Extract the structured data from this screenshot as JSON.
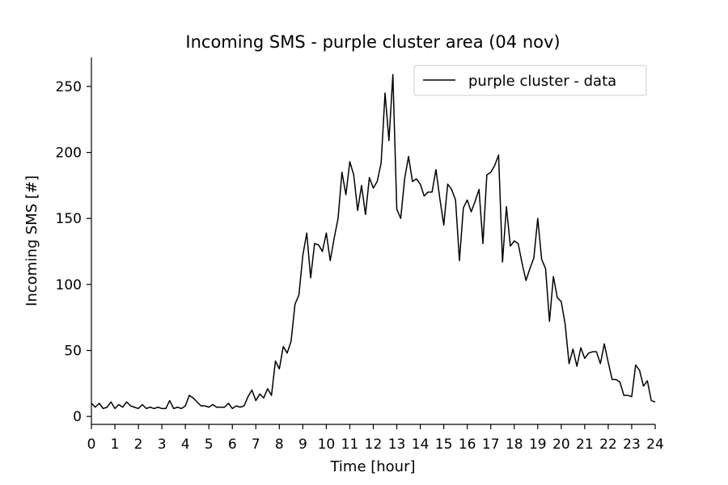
{
  "chart_data": {
    "type": "line",
    "title": "Incoming SMS - purple cluster area (04 nov)",
    "xlabel": "Time [hour]",
    "ylabel": "Incoming SMS [#]",
    "xlim": [
      0,
      24
    ],
    "ylim": [
      -6,
      272
    ],
    "xticks": [
      0,
      1,
      2,
      3,
      4,
      5,
      6,
      7,
      8,
      9,
      10,
      11,
      12,
      13,
      14,
      15,
      16,
      17,
      18,
      19,
      20,
      21,
      22,
      23,
      24
    ],
    "yticks": [
      0,
      50,
      100,
      150,
      200,
      250
    ],
    "grid": false,
    "legend_position": "top-right",
    "series": [
      {
        "name": "purple cluster - data",
        "color": "#000000",
        "x": [
          0,
          0.1667,
          0.3333,
          0.5,
          0.6667,
          0.8333,
          1,
          1.1667,
          1.3333,
          1.5,
          1.6667,
          1.8333,
          2,
          2.1667,
          2.3333,
          2.5,
          2.6667,
          2.8333,
          3,
          3.1667,
          3.3333,
          3.5,
          3.6667,
          3.8333,
          4,
          4.1667,
          4.3333,
          4.5,
          4.6667,
          4.8333,
          5,
          5.1667,
          5.3333,
          5.5,
          5.6667,
          5.8333,
          6,
          6.1667,
          6.3333,
          6.5,
          6.6667,
          6.8333,
          7,
          7.1667,
          7.3333,
          7.5,
          7.6667,
          7.8333,
          8,
          8.1667,
          8.3333,
          8.5,
          8.6667,
          8.8333,
          9,
          9.1667,
          9.3333,
          9.5,
          9.6667,
          9.8333,
          10,
          10.1667,
          10.3333,
          10.5,
          10.6667,
          10.8333,
          11,
          11.1667,
          11.3333,
          11.5,
          11.6667,
          11.8333,
          12,
          12.1667,
          12.3333,
          12.5,
          12.6667,
          12.8333,
          13,
          13.1667,
          13.3333,
          13.5,
          13.6667,
          13.8333,
          14,
          14.1667,
          14.3333,
          14.5,
          14.6667,
          14.8333,
          15,
          15.1667,
          15.3333,
          15.5,
          15.6667,
          15.8333,
          16,
          16.1667,
          16.3333,
          16.5,
          16.6667,
          16.8333,
          17,
          17.1667,
          17.3333,
          17.5,
          17.6667,
          17.8333,
          18,
          18.1667,
          18.3333,
          18.5,
          18.6667,
          18.8333,
          19,
          19.1667,
          19.3333,
          19.5,
          19.6667,
          19.8333,
          20,
          20.1667,
          20.3333,
          20.5,
          20.6667,
          20.8333,
          21,
          21.1667,
          21.3333,
          21.5,
          21.6667,
          21.8333,
          22,
          22.1667,
          22.3333,
          22.5,
          22.6667,
          22.8333,
          23,
          23.1667,
          23.3333,
          23.5,
          23.6667,
          23.8333,
          24
        ],
        "values": [
          10,
          7,
          10,
          6,
          7,
          11,
          6,
          9,
          7,
          11,
          8,
          7,
          6,
          9,
          6,
          7,
          6,
          7,
          6,
          6,
          12,
          6,
          7,
          6,
          8,
          16,
          14,
          11,
          8,
          8,
          7,
          9,
          7,
          7,
          7,
          10,
          6,
          8,
          7,
          8,
          15,
          20,
          12,
          17,
          14,
          21,
          16,
          42,
          36,
          53,
          48,
          57,
          85,
          92,
          122,
          139,
          105,
          131,
          130,
          125,
          139,
          118,
          135,
          150,
          185,
          168,
          193,
          183,
          156,
          175,
          153,
          181,
          173,
          178,
          192,
          245,
          209,
          259,
          157,
          150,
          180,
          197,
          178,
          180,
          176,
          167,
          170,
          170,
          187,
          165,
          145,
          176,
          172,
          164,
          118,
          158,
          164,
          155,
          163,
          172,
          131,
          183,
          185,
          190,
          198,
          117,
          159,
          129,
          133,
          131,
          116,
          103,
          112,
          120,
          150,
          119,
          112,
          72,
          106,
          90,
          87,
          70,
          40,
          51,
          38,
          52,
          44,
          48,
          49,
          49,
          40,
          55,
          41,
          28,
          28,
          26,
          16,
          16,
          15,
          39,
          35,
          23,
          27,
          12,
          11
        ]
      }
    ]
  }
}
